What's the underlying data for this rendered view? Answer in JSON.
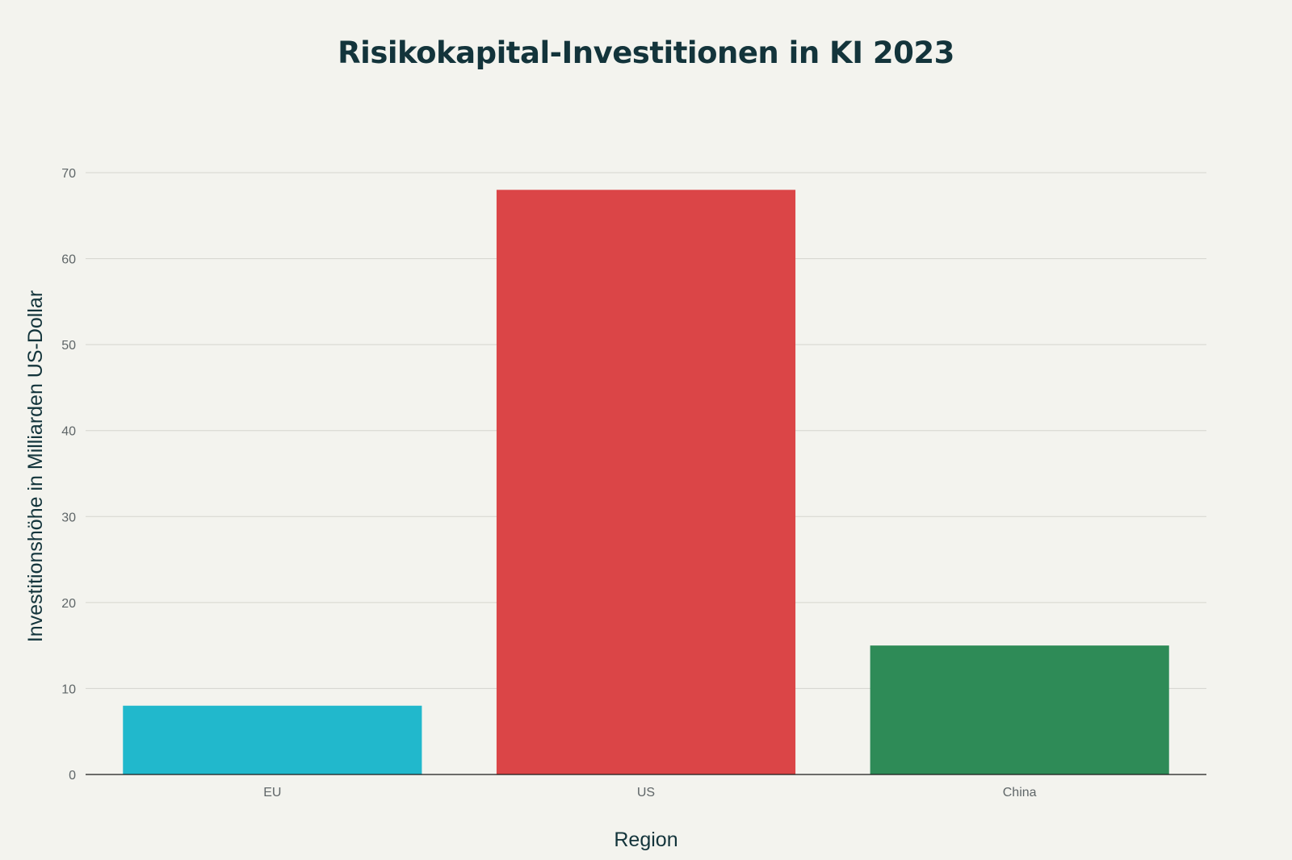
{
  "chart_data": {
    "type": "bar",
    "title": "Risikokapital-Investitionen in KI 2023",
    "xlabel": "Region",
    "ylabel": "Investitionshöhe in Milliarden US-Dollar",
    "categories": [
      "EU",
      "US",
      "China"
    ],
    "values": [
      8,
      68,
      15
    ],
    "colors": [
      "#21b8cc",
      "#db4547",
      "#2e8b57"
    ],
    "ylim": [
      0,
      70
    ],
    "yticks": [
      0,
      10,
      20,
      30,
      40,
      50,
      60,
      70
    ],
    "grid": true,
    "legend": "none"
  }
}
